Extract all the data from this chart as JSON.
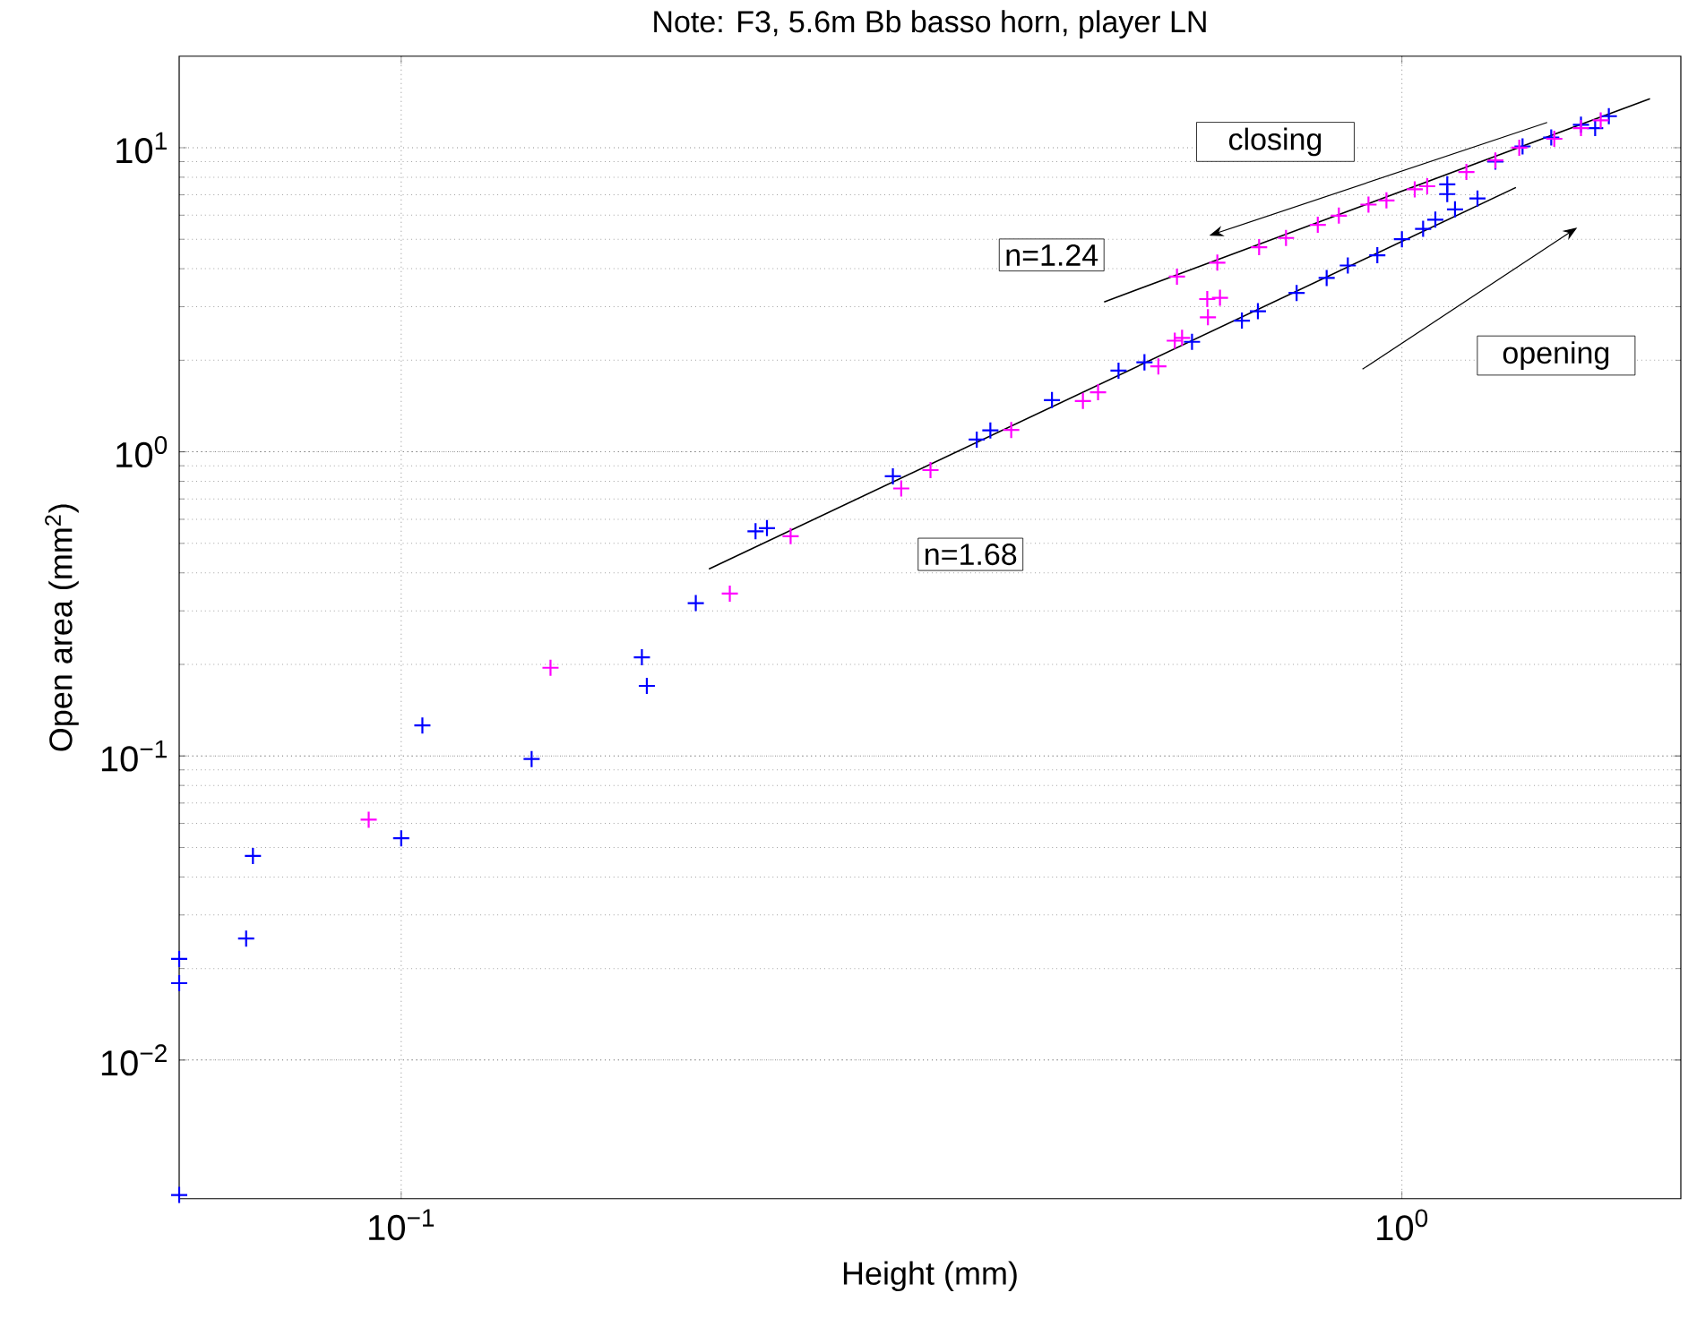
{
  "chart_data": {
    "type": "scatter",
    "title": "Note: F3, 5.6m Bb basso horn, player LN",
    "xlabel": "Height (mm)",
    "ylabel": "Open area (mm$^{2}$)",
    "log": "xy",
    "grid": true,
    "marker": "cross",
    "xlim": [
      0.06,
      1.9
    ],
    "ylim": [
      0.0035,
      20
    ],
    "xticks": [
      {
        "value": 0.1,
        "label": "10$^{−1}$"
      },
      {
        "value": 1,
        "label": "10$^{0}$"
      }
    ],
    "yticks": [
      {
        "value": 0.01,
        "label": "10$^{−2}$"
      },
      {
        "value": 0.1,
        "label": "10$^{−1}$"
      },
      {
        "value": 1,
        "label": "10$^{0}$"
      },
      {
        "value": 10,
        "label": "10$^{1}$"
      }
    ],
    "annotations": [
      "closing",
      "opening",
      "n=1.24",
      "n=1.68"
    ],
    "series": [
      {
        "color": "#0000ff",
        "x": [
          0.06,
          0.06,
          0.06,
          0.07,
          0.0711,
          0.1,
          0.105,
          0.135,
          0.174,
          0.176,
          0.197,
          0.226,
          0.232,
          0.31,
          0.376,
          0.388,
          0.447,
          0.521,
          0.553,
          0.617,
          0.692,
          0.718,
          0.785,
          0.841,
          0.883,
          0.945,
          1.0,
          1.05,
          1.08,
          1.13,
          1.19,
          1.11,
          1.11,
          1.16,
          1.24,
          1.32,
          1.41,
          1.51,
          1.56,
          1.61
        ],
        "values": [
          0.0036,
          0.0215,
          0.0179,
          0.0251,
          0.0469,
          0.0536,
          0.126,
          0.0977,
          0.211,
          0.17,
          0.318,
          0.548,
          0.561,
          0.831,
          1.097,
          1.176,
          1.48,
          1.85,
          1.97,
          2.3,
          2.7,
          2.9,
          3.33,
          3.73,
          4.1,
          4.43,
          5.0,
          5.41,
          5.8,
          6.27,
          6.81,
          7.58,
          7.04,
          null,
          9.0,
          10.1,
          10.8,
          11.9,
          11.6,
          12.7
        ]
      },
      {
        "color": "#ff00ff",
        "x": [
          0.0928,
          0.141,
          0.213,
          0.245,
          0.316,
          0.338,
          0.407,
          0.48,
          0.497,
          0.571,
          0.593,
          0.603,
          0.596,
          0.639,
          0.658,
          0.64,
          0.654,
          0.72,
          0.766,
          0.824,
          0.865,
          0.926,
          0.965,
          1.03,
          1.06,
          1.16,
          1.24,
          1.31,
          1.42,
          1.51,
          1.58
        ],
        "values": [
          0.0617,
          0.195,
          0.342,
          0.528,
          0.758,
          0.871,
          1.18,
          1.47,
          1.57,
          1.91,
          2.32,
          2.37,
          3.77,
          3.18,
          3.21,
          2.77,
          4.19,
          4.71,
          5.05,
          5.58,
          5.98,
          6.5,
          6.71,
          7.3,
          7.47,
          8.32,
          9.08,
          10.0,
          10.7,
          11.6,
          12.3
        ]
      },
      {
        "type": "line",
        "marker": "none",
        "color": "#000000",
        "x": [
          0.504,
          1.77
        ],
        "values": [
          3.11,
          14.5
        ]
      },
      {
        "type": "line",
        "marker": "none",
        "color": "#000000",
        "x": [
          0.203,
          1.3
        ],
        "values": [
          0.412,
          7.4
        ]
      }
    ]
  }
}
